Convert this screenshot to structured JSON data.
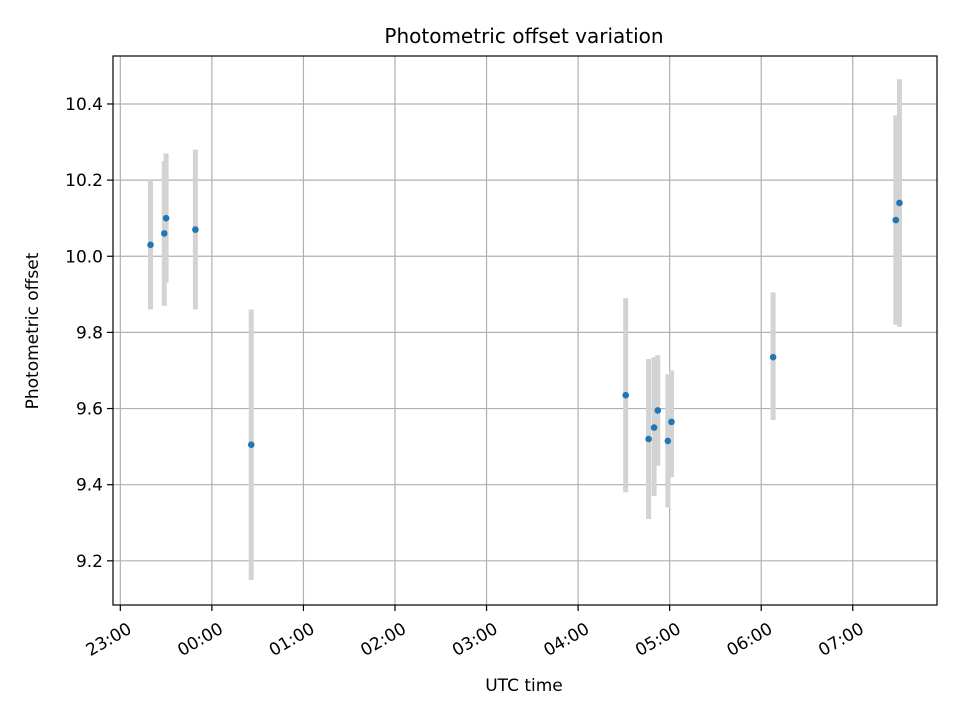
{
  "chart_data": {
    "type": "scatter",
    "title": "Photometric offset variation",
    "xlabel": "UTC time",
    "ylabel": "Photometric offset",
    "xlim_hours": [
      -1.08,
      7.92
    ],
    "ylim": [
      9.084,
      10.526
    ],
    "grid": true,
    "x_ticks": [
      {
        "hour": -1,
        "label": "23:00"
      },
      {
        "hour": 0,
        "label": "00:00"
      },
      {
        "hour": 1,
        "label": "01:00"
      },
      {
        "hour": 2,
        "label": "02:00"
      },
      {
        "hour": 3,
        "label": "03:00"
      },
      {
        "hour": 4,
        "label": "04:00"
      },
      {
        "hour": 5,
        "label": "05:00"
      },
      {
        "hour": 6,
        "label": "06:00"
      },
      {
        "hour": 7,
        "label": "07:00"
      }
    ],
    "y_ticks": [
      {
        "value": 9.2,
        "label": "9.2"
      },
      {
        "value": 9.4,
        "label": "9.4"
      },
      {
        "value": 9.6,
        "label": "9.6"
      },
      {
        "value": 9.8,
        "label": "9.8"
      },
      {
        "value": 10.0,
        "label": "10.0"
      },
      {
        "value": 10.2,
        "label": "10.2"
      },
      {
        "value": 10.4,
        "label": "10.4"
      }
    ],
    "series": [
      {
        "name": "offset",
        "points": [
          {
            "hour": -0.67,
            "y": 10.03,
            "err_low": 9.86,
            "err_high": 10.2
          },
          {
            "hour": -0.52,
            "y": 10.06,
            "err_low": 9.87,
            "err_high": 10.25
          },
          {
            "hour": -0.5,
            "y": 10.1,
            "err_low": 9.93,
            "err_high": 10.27
          },
          {
            "hour": -0.18,
            "y": 10.07,
            "err_low": 9.86,
            "err_high": 10.28
          },
          {
            "hour": 0.43,
            "y": 9.505,
            "err_low": 9.15,
            "err_high": 9.86
          },
          {
            "hour": 4.52,
            "y": 9.635,
            "err_low": 9.38,
            "err_high": 9.89
          },
          {
            "hour": 4.77,
            "y": 9.52,
            "err_low": 9.31,
            "err_high": 9.73
          },
          {
            "hour": 4.83,
            "y": 9.55,
            "err_low": 9.37,
            "err_high": 9.735
          },
          {
            "hour": 4.87,
            "y": 9.595,
            "err_low": 9.45,
            "err_high": 9.74
          },
          {
            "hour": 4.98,
            "y": 9.515,
            "err_low": 9.34,
            "err_high": 9.69
          },
          {
            "hour": 5.02,
            "y": 9.565,
            "err_low": 9.42,
            "err_high": 9.7
          },
          {
            "hour": 6.13,
            "y": 9.735,
            "err_low": 9.57,
            "err_high": 9.905
          },
          {
            "hour": 7.47,
            "y": 10.095,
            "err_low": 9.82,
            "err_high": 10.37
          },
          {
            "hour": 7.51,
            "y": 10.14,
            "err_low": 9.815,
            "err_high": 10.465
          }
        ]
      }
    ],
    "colors": {
      "marker": "#1f77b4",
      "errorbar": "#d3d3d3",
      "grid": "#b0b0b0",
      "axes": "#000000"
    }
  }
}
